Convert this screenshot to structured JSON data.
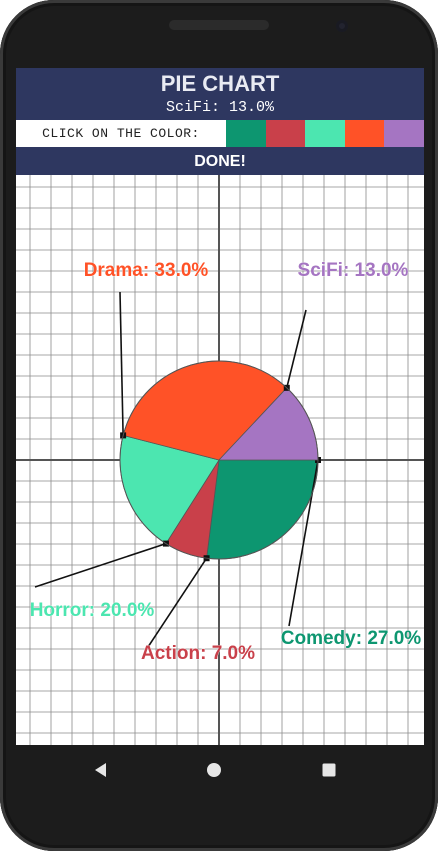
{
  "header": {
    "title": "PIE CHART",
    "subtitle": "SciFi: 13.0%"
  },
  "picker": {
    "label": "CLICK ON THE COLOR:",
    "swatches": [
      "#0d9670",
      "#c9404a",
      "#4ce6b0",
      "#ff5227",
      "#a575c2"
    ]
  },
  "done_label": "DONE!",
  "chart_data": {
    "type": "pie",
    "title": "PIE CHART",
    "slices": [
      {
        "label": "Drama",
        "value": 33.0,
        "text": "Drama: 33.0%",
        "color": "#ff5227",
        "label_color": "#ff5227"
      },
      {
        "label": "SciFi",
        "value": 13.0,
        "text": "SciFi: 13.0%",
        "color": "#a575c2",
        "label_color": "#a575c2"
      },
      {
        "label": "Comedy",
        "value": 27.0,
        "text": "Comedy: 27.0%",
        "color": "#0d9670",
        "label_color": "#0d9670"
      },
      {
        "label": "Action",
        "value": 7.0,
        "text": "Action: 7.0%",
        "color": "#c9404a",
        "label_color": "#c9404a"
      },
      {
        "label": "Horror",
        "value": 20.0,
        "text": "Horror: 20.0%",
        "color": "#4ce6b0",
        "label_color": "#4ce6b0"
      }
    ],
    "grid": true,
    "axes": true
  },
  "icons": {
    "back": "back-triangle-icon",
    "home": "home-circle-icon",
    "recent": "recent-square-icon"
  }
}
